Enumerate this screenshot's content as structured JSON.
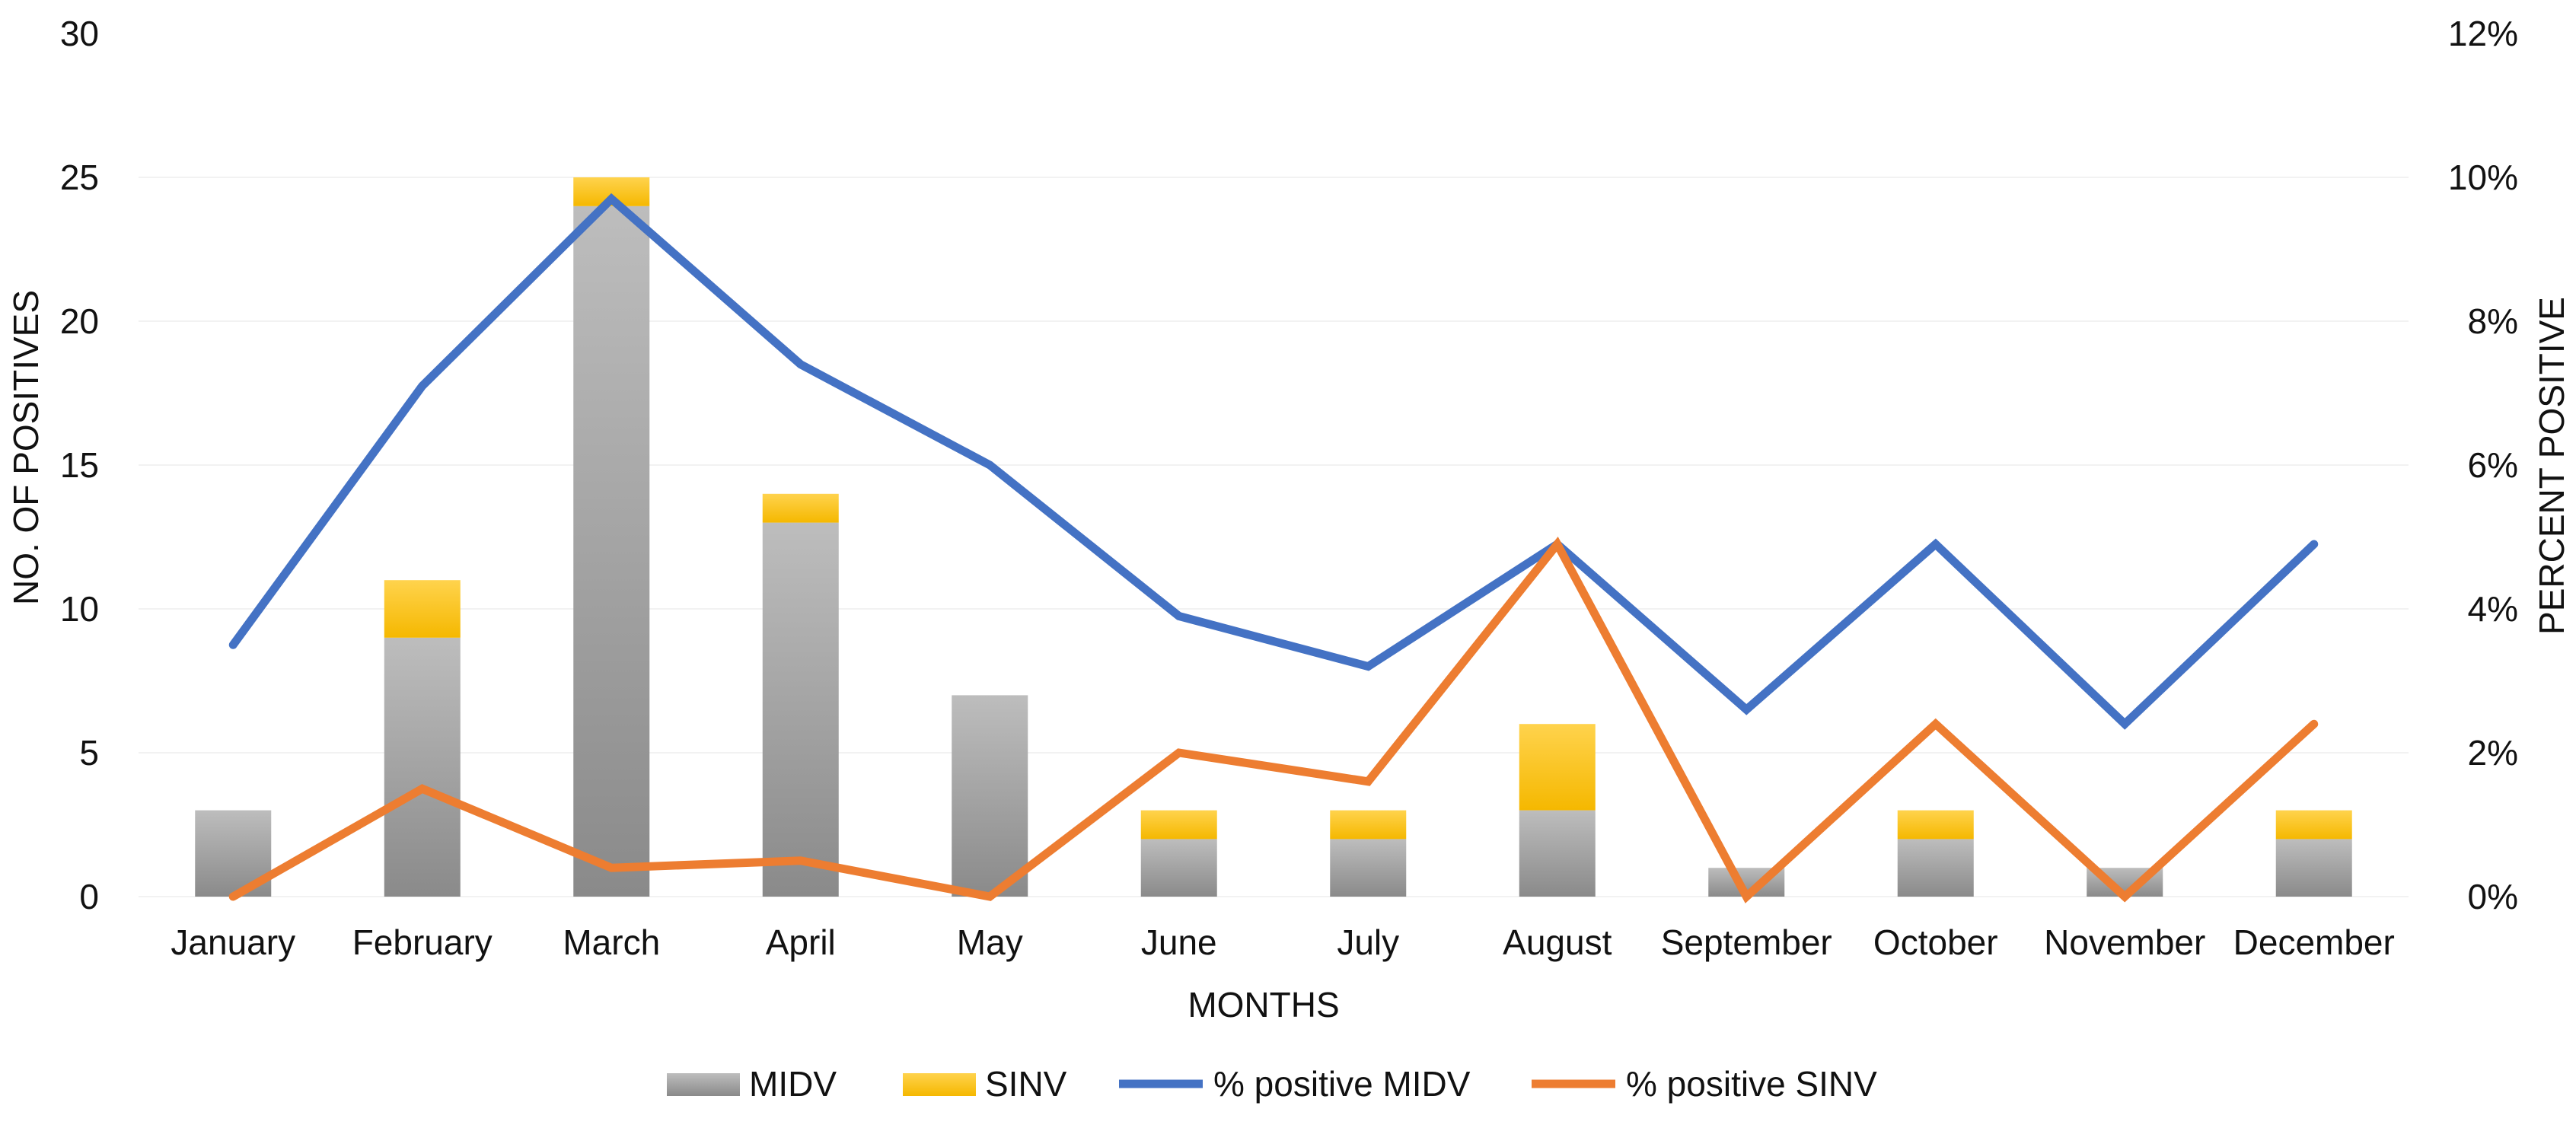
{
  "chart_data": {
    "type": "bar",
    "categories": [
      "January",
      "February",
      "March",
      "April",
      "May",
      "June",
      "July",
      "August",
      "September",
      "October",
      "November",
      "December"
    ],
    "series": [
      {
        "name": "MIDV",
        "type": "bar",
        "axis": "left",
        "stack": "positives",
        "color": "#a6a6a6",
        "values": [
          3,
          9,
          24,
          13,
          7,
          2,
          2,
          3,
          1,
          2,
          1,
          2
        ]
      },
      {
        "name": "SINV",
        "type": "bar",
        "axis": "left",
        "stack": "positives",
        "color": "#ffc000",
        "values": [
          0,
          2,
          1,
          1,
          0,
          1,
          1,
          3,
          0,
          1,
          0,
          1
        ]
      },
      {
        "name": "% positive MIDV",
        "type": "line",
        "axis": "right",
        "color": "#4472c4",
        "values": [
          3.5,
          7.1,
          9.7,
          7.4,
          6.0,
          3.9,
          3.2,
          4.9,
          2.6,
          4.9,
          2.4,
          4.9
        ]
      },
      {
        "name": "% positive SINV",
        "type": "line",
        "axis": "right",
        "color": "#ed7d31",
        "values": [
          0,
          1.5,
          0.4,
          0.5,
          0,
          2.0,
          1.6,
          4.9,
          0,
          2.4,
          0,
          2.4
        ]
      }
    ],
    "xlabel": "MONTHS",
    "ylabel": "NO. OF POSITIVES",
    "y2label": "PERCENT POSITIVE",
    "ylim": [
      0,
      30
    ],
    "y2lim": [
      0,
      12
    ],
    "yticks": [
      "0",
      "5",
      "10",
      "15",
      "20",
      "25",
      "30"
    ],
    "y2ticks": [
      "0%",
      "2%",
      "4%",
      "6%",
      "8%",
      "10%",
      "12%"
    ],
    "legend_position": "bottom",
    "grid": true,
    "grid_color": "#f2f2f2"
  }
}
